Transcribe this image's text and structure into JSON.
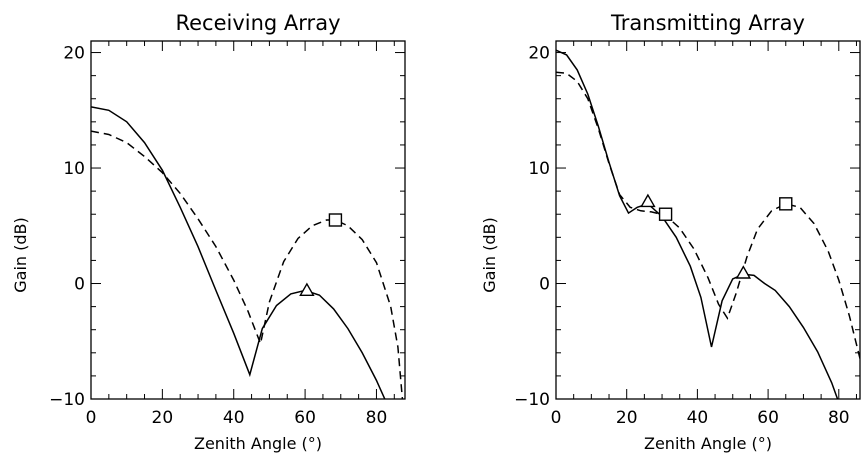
{
  "chart_data": [
    {
      "type": "line",
      "title": "Receiving Array",
      "xlabel": "Zenith Angle (°)",
      "ylabel": "Gain (dB)",
      "xlim": [
        0,
        88
      ],
      "ylim": [
        -10,
        21
      ],
      "xticks": [
        0,
        20,
        40,
        60,
        80
      ],
      "yticks": [
        -10,
        0,
        10,
        20
      ],
      "grid": false,
      "series": [
        {
          "line_style": "solid",
          "x": [
            0,
            5,
            10,
            15,
            20,
            25,
            30,
            35,
            40,
            44.5,
            48,
            52,
            56,
            60,
            64,
            68,
            72,
            76,
            80,
            83.5
          ],
          "y": [
            15.3,
            15.0,
            14.0,
            12.2,
            9.8,
            6.6,
            3.2,
            -0.6,
            -4.3,
            -7.9,
            -3.9,
            -1.9,
            -0.9,
            -0.6,
            -1.0,
            -2.2,
            -3.9,
            -6.0,
            -8.4,
            -10.8
          ],
          "marker": "triangle",
          "marker_points": [
            [
              60.5,
              -0.6
            ]
          ]
        },
        {
          "line_style": "dashed",
          "x": [
            0,
            5,
            10,
            15,
            20,
            25,
            30,
            35,
            40,
            44,
            47.5,
            50,
            54,
            58,
            62,
            66,
            68.5,
            72,
            76,
            80,
            84,
            86,
            87.5
          ],
          "y": [
            13.2,
            12.9,
            12.2,
            11.0,
            9.6,
            7.8,
            5.6,
            3.2,
            0.3,
            -2.4,
            -5.2,
            -1.6,
            1.9,
            3.9,
            5.0,
            5.5,
            5.5,
            5.0,
            3.8,
            1.8,
            -2.0,
            -5.5,
            -10.8
          ],
          "marker": "square",
          "marker_points": [
            [
              68.5,
              5.5
            ]
          ]
        }
      ]
    },
    {
      "type": "line",
      "title": "Transmitting Array",
      "xlabel": "Zenith Angle (°)",
      "ylabel": "Gain (dB)",
      "xlim": [
        0,
        86
      ],
      "ylim": [
        -10,
        21
      ],
      "xticks": [
        0,
        20,
        40,
        60,
        80
      ],
      "yticks": [
        -10,
        0,
        10,
        20
      ],
      "grid": false,
      "series": [
        {
          "line_style": "solid",
          "x": [
            0,
            3,
            6,
            9,
            12,
            15,
            18,
            20.5,
            23,
            26,
            30,
            34,
            38,
            41,
            44,
            47,
            50,
            53,
            56,
            59,
            62,
            66,
            70,
            74,
            78,
            80
          ],
          "y": [
            20.2,
            19.8,
            18.5,
            16.4,
            13.6,
            10.5,
            7.6,
            6.1,
            6.6,
            6.9,
            5.8,
            4.0,
            1.5,
            -1.2,
            -5.5,
            -1.5,
            0.4,
            0.8,
            0.7,
            0.0,
            -0.6,
            -2.0,
            -3.8,
            -5.9,
            -8.6,
            -10.3
          ],
          "marker": "triangle",
          "marker_points": [
            [
              26,
              7.1
            ],
            [
              53,
              0.9
            ]
          ]
        },
        {
          "line_style": "dashed",
          "x": [
            0,
            3,
            6,
            9,
            12,
            15,
            18,
            21,
            24,
            27,
            31,
            35,
            39,
            43,
            46,
            48.5,
            51,
            54,
            57,
            61,
            65,
            69,
            73,
            77,
            80,
            83,
            86
          ],
          "y": [
            18.3,
            18.2,
            17.5,
            16.0,
            13.4,
            10.4,
            7.7,
            6.6,
            6.3,
            6.2,
            5.9,
            4.8,
            3.0,
            0.5,
            -1.8,
            -3.0,
            -0.8,
            2.3,
            4.7,
            6.3,
            6.9,
            6.6,
            5.2,
            2.8,
            0.3,
            -2.8,
            -6.5
          ],
          "marker": "square",
          "marker_points": [
            [
              31,
              6.0
            ],
            [
              65,
              6.9
            ]
          ]
        }
      ]
    }
  ]
}
